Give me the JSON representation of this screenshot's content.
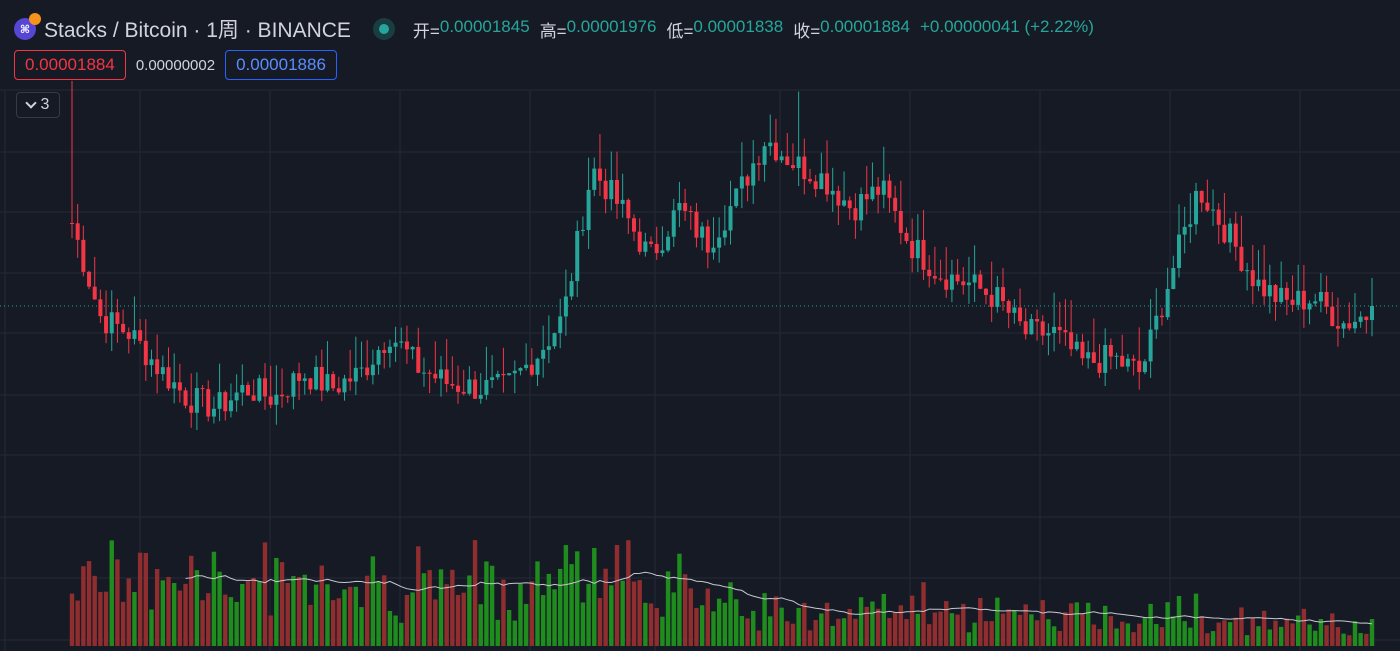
{
  "header": {
    "title": "Stacks / Bitcoin · 1周 · BINANCE",
    "ohlc": [
      {
        "label": "开=",
        "value": "0.00001845"
      },
      {
        "label": "高=",
        "value": "0.00001976"
      },
      {
        "label": "低=",
        "value": "0.00001838"
      },
      {
        "label": "收=",
        "value": "0.00001884"
      }
    ],
    "change": "+0.00000041 (+2.22%)"
  },
  "trade": {
    "sell_price": "0.00001884",
    "spread": "0.00000002",
    "buy_price": "0.00001886"
  },
  "indicators": {
    "count": "3"
  },
  "colors": {
    "background": "#161a25",
    "up": "#26a69a",
    "down": "#f23645",
    "volume_up": "#1e8d1e",
    "volume_down": "#8f2d2f",
    "grid": "#242936"
  },
  "chart_data": {
    "type": "candlestick",
    "symbol": "Stacks / Bitcoin",
    "interval": "1周",
    "exchange": "BINANCE",
    "last_price": 1.884e-05,
    "ohlc_waypoints": [
      2.05e-05,
      1.86e-05,
      1.83e-05,
      1.76e-05,
      1.7e-05,
      1.68e-05,
      1.72e-05,
      1.7e-05,
      1.75e-05,
      1.72e-05,
      1.75e-05,
      1.83e-05,
      1.76e-05,
      1.73e-05,
      1.72e-05,
      1.72e-05,
      1.78e-05,
      1.86e-05,
      2.16e-05,
      2.08e-05,
      1.98e-05,
      2.08e-05,
      2.01e-05,
      2.1e-05,
      2.22e-05,
      2.17e-05,
      2.14e-05,
      2.08e-05,
      2.12e-05,
      2.01e-05,
      1.95e-05,
      1.93e-05,
      1.9e-05,
      1.83e-05,
      1.83e-05,
      1.77e-05,
      1.78e-05,
      1.75e-05,
      1.94e-05,
      2.12e-05,
      2.03e-05,
      1.93e-05,
      1.89e-05,
      1.9e-05,
      1.85e-05,
      1.87e-05
    ],
    "volume_moving_average": true
  }
}
